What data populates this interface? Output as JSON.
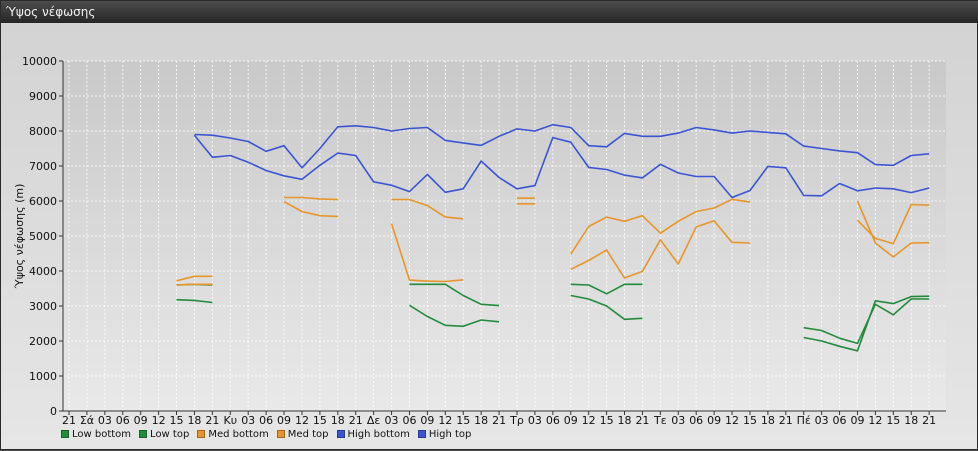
{
  "window": {
    "title": "Ύψος νέφωσης"
  },
  "chart_data": {
    "type": "line",
    "title": "",
    "ylabel": "Ύψος νέφωσης (m)",
    "xlabel": "",
    "ylim": [
      0,
      10000
    ],
    "yticks": [
      0,
      1000,
      2000,
      3000,
      4000,
      5000,
      6000,
      7000,
      8000,
      9000,
      10000
    ],
    "grid": true,
    "legend_position": "bottom-left",
    "x_ticks": [
      "21",
      "Σά",
      "03",
      "06",
      "09",
      "12",
      "15",
      "18",
      "21",
      "Κυ",
      "03",
      "06",
      "09",
      "12",
      "15",
      "18",
      "21",
      "Δε",
      "03",
      "06",
      "09",
      "12",
      "15",
      "18",
      "21",
      "Τρ",
      "03",
      "06",
      "09",
      "12",
      "15",
      "18",
      "21",
      "Τε",
      "03",
      "06",
      "09",
      "12",
      "15",
      "18",
      "21",
      "Πέ",
      "03",
      "06",
      "09",
      "12",
      "15",
      "18",
      "21"
    ],
    "series": [
      {
        "name": "Low bottom",
        "color": "#238b3c",
        "values": [
          null,
          null,
          null,
          null,
          null,
          null,
          3600,
          3620,
          3600,
          null,
          null,
          null,
          null,
          null,
          null,
          null,
          null,
          null,
          null,
          3620,
          3620,
          3620,
          3300,
          3050,
          3010,
          null,
          null,
          null,
          3300,
          3200,
          3000,
          2620,
          2650,
          null,
          null,
          null,
          null,
          null,
          null,
          null,
          null,
          2100,
          2000,
          1850,
          1720,
          3150,
          3070,
          3270,
          3280
        ]
      },
      {
        "name": "Low top",
        "color": "#238b3c",
        "values": [
          null,
          null,
          null,
          null,
          null,
          null,
          3180,
          3160,
          3100,
          null,
          null,
          null,
          null,
          null,
          null,
          null,
          null,
          null,
          null,
          3020,
          2700,
          2450,
          2420,
          2600,
          2550,
          null,
          null,
          null,
          3620,
          3600,
          3350,
          3620,
          3620,
          null,
          null,
          null,
          null,
          null,
          null,
          null,
          null,
          2380,
          2300,
          2080,
          1930,
          3050,
          2750,
          3200,
          3200
        ]
      },
      {
        "name": "Med bottom",
        "color": "#e8962a",
        "values": [
          null,
          null,
          null,
          null,
          null,
          null,
          3720,
          3850,
          3850,
          null,
          null,
          null,
          6100,
          6100,
          6060,
          6040,
          null,
          null,
          6040,
          6040,
          5870,
          5540,
          5490,
          null,
          null,
          6080,
          6080,
          null,
          4050,
          4300,
          4600,
          3800,
          3990,
          4890,
          4200,
          5260,
          5430,
          4820,
          4800,
          null,
          null,
          null,
          null,
          null,
          5450,
          4930,
          4780,
          5900,
          5880
        ]
      },
      {
        "name": "Med top",
        "color": "#e8962a",
        "values": [
          null,
          null,
          null,
          null,
          null,
          null,
          3600,
          3620,
          3620,
          null,
          null,
          null,
          5980,
          5700,
          5580,
          5560,
          null,
          null,
          5350,
          3740,
          3710,
          3700,
          3750,
          null,
          null,
          5920,
          5920,
          null,
          4480,
          5270,
          5540,
          5420,
          5580,
          5080,
          5420,
          5700,
          5800,
          6050,
          5970,
          null,
          null,
          null,
          null,
          null,
          6000,
          4800,
          4400,
          4800,
          4810
        ]
      },
      {
        "name": "High bottom",
        "color": "#3a55d3",
        "values": [
          null,
          null,
          null,
          null,
          null,
          null,
          null,
          7880,
          7250,
          7300,
          7110,
          6870,
          6720,
          6620,
          7020,
          7370,
          7300,
          6550,
          6450,
          6270,
          6760,
          6250,
          6350,
          7140,
          6670,
          6350,
          6440,
          7810,
          7680,
          6960,
          6900,
          6740,
          6660,
          7050,
          6800,
          6700,
          6700,
          6100,
          6300,
          6990,
          6950,
          6160,
          6150,
          6500,
          6290,
          6370,
          6350,
          6240,
          6370
        ]
      },
      {
        "name": "High top",
        "color": "#3a55d3",
        "values": [
          null,
          null,
          null,
          null,
          null,
          null,
          null,
          7900,
          7880,
          7800,
          7700,
          7420,
          7580,
          6950,
          7500,
          8120,
          8150,
          8100,
          8000,
          8070,
          8100,
          7730,
          7660,
          7590,
          7850,
          8060,
          8000,
          8180,
          8100,
          7580,
          7550,
          7930,
          7850,
          7850,
          7940,
          8100,
          8030,
          7940,
          8000,
          7960,
          7920,
          7570,
          7500,
          7430,
          7380,
          7040,
          7020,
          7300,
          7350
        ]
      }
    ]
  }
}
